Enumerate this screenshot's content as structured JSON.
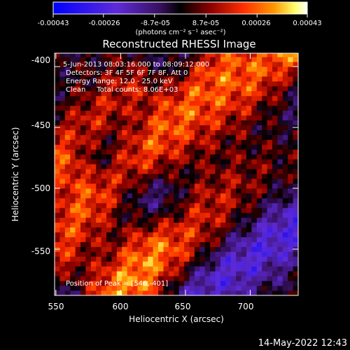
{
  "chart_data": {
    "type": "heatmap",
    "title": "Reconstructed RHESSI Image",
    "xlabel": "Heliocentric X (arcsec)",
    "ylabel": "Heliocentric Y (arcsec)",
    "x_ticks": [
      550,
      600,
      650,
      700
    ],
    "y_ticks": [
      -400,
      -450,
      -500,
      -550
    ],
    "xlim": [
      549,
      737
    ],
    "ylim": [
      -588,
      -389
    ],
    "colorbar": {
      "min": -0.00043,
      "max": 0.00043,
      "tick_labels": [
        "-0.00043",
        "-0.00026",
        "-8.7e-05",
        "8.7e-05",
        "0.00026",
        "0.00043"
      ],
      "tick_values": [
        -0.00043,
        -0.00026,
        -8.7e-05,
        8.7e-05,
        0.00026,
        0.00043
      ],
      "unit_label": "(photons cm⁻² s⁻¹ asec⁻²)",
      "colormap": [
        "#0000ff",
        "#5e2bd8",
        "#38105f",
        "#000000",
        "#8e0000",
        "#ff3000",
        "#ff9800",
        "#ffff6a",
        "#ffffff"
      ]
    },
    "annotations": {
      "time": "5-Jun-2013 08:03:16.000 to 08:09:12.000",
      "detectors": "Detectors: 3F 4F 5F 6F 7F 8F, Att 0",
      "energy": "Energy Range: 12.0 - 25.0 keV",
      "method": "Clean     Total counts: 8.06E+03",
      "peak": "Position of Peak = [546,-401]"
    },
    "ridges": [
      {
        "from": [
          598,
          -580
        ],
        "to": [
          735,
          -392
        ],
        "width": 26,
        "strength": 1.0
      },
      {
        "from": [
          550,
          -555
        ],
        "to": [
          660,
          -395
        ],
        "width": 20,
        "strength": 0.75
      },
      {
        "from": [
          555,
          -475
        ],
        "to": [
          610,
          -420
        ],
        "width": 16,
        "strength": 0.6
      }
    ],
    "troughs": [
      {
        "from": [
          640,
          -505
        ],
        "to": [
          735,
          -420
        ],
        "width": 20,
        "strength": 0.85
      },
      {
        "from": [
          585,
          -470
        ],
        "to": [
          650,
          -390
        ],
        "width": 16,
        "strength": 0.7
      },
      {
        "from": [
          555,
          -585
        ],
        "to": [
          610,
          -520
        ],
        "width": 22,
        "strength": 0.65
      },
      {
        "from": [
          655,
          -590
        ],
        "to": [
          735,
          -530
        ],
        "width": 18,
        "strength": 0.6
      }
    ]
  },
  "footer": {
    "timestamp": "14-May-2022 12:43"
  }
}
